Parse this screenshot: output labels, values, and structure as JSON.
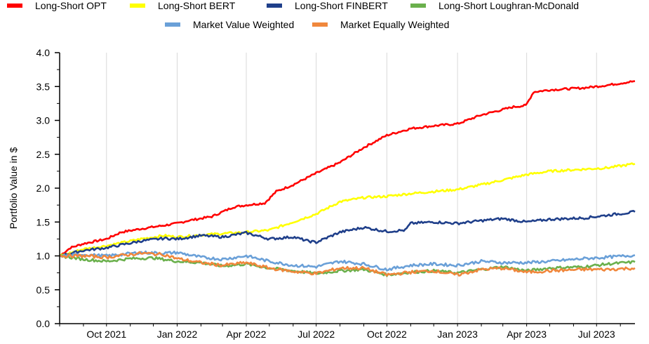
{
  "chart_data": {
    "type": "line",
    "title": "",
    "xlabel": "",
    "ylabel": "Portfolio Value in $",
    "ylim": [
      0.0,
      4.0
    ],
    "yticks": [
      "0.0",
      "0.5",
      "1.0",
      "1.5",
      "2.0",
      "2.5",
      "3.0",
      "3.5",
      "4.0"
    ],
    "xlim": [
      "2021-08-01",
      "2023-08-20"
    ],
    "xticks": [
      {
        "label": "Oct 2021",
        "date": "2021-10-01"
      },
      {
        "label": "Jan 2022",
        "date": "2022-01-01"
      },
      {
        "label": "Apr 2022",
        "date": "2022-04-01"
      },
      {
        "label": "Jul 2022",
        "date": "2022-07-01"
      },
      {
        "label": "Oct 2022",
        "date": "2022-10-01"
      },
      {
        "label": "Jan 2023",
        "date": "2023-01-01"
      },
      {
        "label": "Apr 2023",
        "date": "2023-04-01"
      },
      {
        "label": "Jul 2023",
        "date": "2023-07-01"
      }
    ],
    "grid": "vertical",
    "legend_position": "top",
    "series": [
      {
        "name": "Long-Short OPT",
        "color": "#ff0000",
        "points": [
          [
            "2021-08-01",
            1.0
          ],
          [
            "2021-08-15",
            1.12
          ],
          [
            "2021-09-01",
            1.18
          ],
          [
            "2021-10-01",
            1.25
          ],
          [
            "2021-10-20",
            1.35
          ],
          [
            "2021-11-15",
            1.4
          ],
          [
            "2021-12-15",
            1.45
          ],
          [
            "2022-01-01",
            1.48
          ],
          [
            "2022-01-15",
            1.52
          ],
          [
            "2022-02-15",
            1.58
          ],
          [
            "2022-03-01",
            1.65
          ],
          [
            "2022-03-15",
            1.72
          ],
          [
            "2022-04-01",
            1.75
          ],
          [
            "2022-04-25",
            1.78
          ],
          [
            "2022-05-10",
            1.95
          ],
          [
            "2022-06-01",
            2.05
          ],
          [
            "2022-07-01",
            2.22
          ],
          [
            "2022-08-01",
            2.38
          ],
          [
            "2022-09-01",
            2.6
          ],
          [
            "2022-10-01",
            2.78
          ],
          [
            "2022-11-01",
            2.88
          ],
          [
            "2022-12-01",
            2.92
          ],
          [
            "2023-01-01",
            2.95
          ],
          [
            "2023-02-01",
            3.08
          ],
          [
            "2023-03-15",
            3.2
          ],
          [
            "2023-03-31",
            3.22
          ],
          [
            "2023-04-10",
            3.42
          ],
          [
            "2023-05-01",
            3.45
          ],
          [
            "2023-06-15",
            3.48
          ],
          [
            "2023-07-15",
            3.52
          ],
          [
            "2023-08-20",
            3.58
          ]
        ]
      },
      {
        "name": "Long-Short BERT",
        "color": "#ffff00",
        "points": [
          [
            "2021-08-01",
            1.0
          ],
          [
            "2021-09-01",
            1.1
          ],
          [
            "2021-10-01",
            1.15
          ],
          [
            "2021-11-15",
            1.25
          ],
          [
            "2021-12-15",
            1.3
          ],
          [
            "2022-01-01",
            1.28
          ],
          [
            "2022-02-15",
            1.32
          ],
          [
            "2022-04-01",
            1.35
          ],
          [
            "2022-05-01",
            1.38
          ],
          [
            "2022-06-01",
            1.5
          ],
          [
            "2022-07-01",
            1.62
          ],
          [
            "2022-08-01",
            1.8
          ],
          [
            "2022-09-01",
            1.86
          ],
          [
            "2022-10-01",
            1.88
          ],
          [
            "2022-11-01",
            1.92
          ],
          [
            "2022-12-01",
            1.95
          ],
          [
            "2023-01-01",
            1.98
          ],
          [
            "2023-02-01",
            2.05
          ],
          [
            "2023-03-01",
            2.12
          ],
          [
            "2023-04-01",
            2.2
          ],
          [
            "2023-05-01",
            2.25
          ],
          [
            "2023-06-15",
            2.28
          ],
          [
            "2023-07-15",
            2.3
          ],
          [
            "2023-08-20",
            2.36
          ]
        ]
      },
      {
        "name": "Long-Short FINBERT",
        "color": "#1f3f8a",
        "points": [
          [
            "2021-08-01",
            1.0
          ],
          [
            "2021-09-01",
            1.08
          ],
          [
            "2021-10-01",
            1.12
          ],
          [
            "2021-11-15",
            1.22
          ],
          [
            "2021-12-15",
            1.26
          ],
          [
            "2022-01-01",
            1.25
          ],
          [
            "2022-02-01",
            1.3
          ],
          [
            "2022-03-01",
            1.28
          ],
          [
            "2022-04-01",
            1.34
          ],
          [
            "2022-05-01",
            1.25
          ],
          [
            "2022-06-01",
            1.28
          ],
          [
            "2022-06-20",
            1.22
          ],
          [
            "2022-07-01",
            1.2
          ],
          [
            "2022-08-01",
            1.35
          ],
          [
            "2022-09-01",
            1.42
          ],
          [
            "2022-10-01",
            1.36
          ],
          [
            "2022-10-25",
            1.38
          ],
          [
            "2022-11-01",
            1.48
          ],
          [
            "2022-12-01",
            1.5
          ],
          [
            "2023-01-01",
            1.48
          ],
          [
            "2023-02-01",
            1.52
          ],
          [
            "2023-03-01",
            1.55
          ],
          [
            "2023-04-01",
            1.5
          ],
          [
            "2023-05-01",
            1.54
          ],
          [
            "2023-06-15",
            1.56
          ],
          [
            "2023-07-15",
            1.6
          ],
          [
            "2023-08-20",
            1.65
          ]
        ]
      },
      {
        "name": "Long-Short Loughran-McDonald",
        "color": "#6ab04c",
        "points": [
          [
            "2021-08-01",
            1.0
          ],
          [
            "2021-09-01",
            0.95
          ],
          [
            "2021-10-01",
            0.92
          ],
          [
            "2021-11-01",
            0.96
          ],
          [
            "2021-12-01",
            0.97
          ],
          [
            "2022-01-01",
            0.92
          ],
          [
            "2022-02-01",
            0.9
          ],
          [
            "2022-03-01",
            0.85
          ],
          [
            "2022-04-01",
            0.88
          ],
          [
            "2022-05-01",
            0.82
          ],
          [
            "2022-06-01",
            0.78
          ],
          [
            "2022-07-01",
            0.74
          ],
          [
            "2022-08-01",
            0.78
          ],
          [
            "2022-09-01",
            0.8
          ],
          [
            "2022-10-01",
            0.72
          ],
          [
            "2022-11-01",
            0.76
          ],
          [
            "2022-12-01",
            0.78
          ],
          [
            "2023-01-01",
            0.75
          ],
          [
            "2023-02-01",
            0.8
          ],
          [
            "2023-03-01",
            0.84
          ],
          [
            "2023-04-01",
            0.78
          ],
          [
            "2023-05-01",
            0.82
          ],
          [
            "2023-06-15",
            0.84
          ],
          [
            "2023-07-15",
            0.88
          ],
          [
            "2023-08-20",
            0.91
          ]
        ]
      },
      {
        "name": "Market Value Weighted",
        "color": "#6aa0d8",
        "points": [
          [
            "2021-08-01",
            1.0
          ],
          [
            "2021-09-01",
            1.02
          ],
          [
            "2021-10-01",
            1.0
          ],
          [
            "2021-11-15",
            1.05
          ],
          [
            "2021-12-15",
            1.04
          ],
          [
            "2022-01-01",
            1.05
          ],
          [
            "2022-02-01",
            0.98
          ],
          [
            "2022-03-01",
            0.95
          ],
          [
            "2022-04-01",
            1.0
          ],
          [
            "2022-05-01",
            0.92
          ],
          [
            "2022-06-01",
            0.86
          ],
          [
            "2022-07-01",
            0.84
          ],
          [
            "2022-08-01",
            0.92
          ],
          [
            "2022-09-01",
            0.88
          ],
          [
            "2022-10-01",
            0.8
          ],
          [
            "2022-11-01",
            0.86
          ],
          [
            "2022-12-01",
            0.88
          ],
          [
            "2023-01-01",
            0.86
          ],
          [
            "2023-02-01",
            0.92
          ],
          [
            "2023-03-01",
            0.9
          ],
          [
            "2023-04-01",
            0.9
          ],
          [
            "2023-05-01",
            0.92
          ],
          [
            "2023-06-15",
            0.96
          ],
          [
            "2023-07-15",
            0.98
          ],
          [
            "2023-08-20",
            1.01
          ]
        ]
      },
      {
        "name": "Market Equally Weighted",
        "color": "#f0873c",
        "points": [
          [
            "2021-08-01",
            1.0
          ],
          [
            "2021-09-01",
            1.0
          ],
          [
            "2021-10-01",
            0.98
          ],
          [
            "2021-11-15",
            1.04
          ],
          [
            "2021-12-15",
            1.02
          ],
          [
            "2022-01-01",
            0.96
          ],
          [
            "2022-02-01",
            0.9
          ],
          [
            "2022-03-01",
            0.86
          ],
          [
            "2022-04-01",
            0.9
          ],
          [
            "2022-05-01",
            0.82
          ],
          [
            "2022-06-01",
            0.77
          ],
          [
            "2022-07-01",
            0.74
          ],
          [
            "2022-08-01",
            0.82
          ],
          [
            "2022-09-01",
            0.82
          ],
          [
            "2022-10-01",
            0.72
          ],
          [
            "2022-11-01",
            0.76
          ],
          [
            "2022-12-01",
            0.78
          ],
          [
            "2023-01-01",
            0.72
          ],
          [
            "2023-02-01",
            0.8
          ],
          [
            "2023-03-01",
            0.82
          ],
          [
            "2023-04-01",
            0.76
          ],
          [
            "2023-05-01",
            0.78
          ],
          [
            "2023-06-15",
            0.8
          ],
          [
            "2023-07-15",
            0.8
          ],
          [
            "2023-08-20",
            0.82
          ]
        ]
      }
    ]
  }
}
